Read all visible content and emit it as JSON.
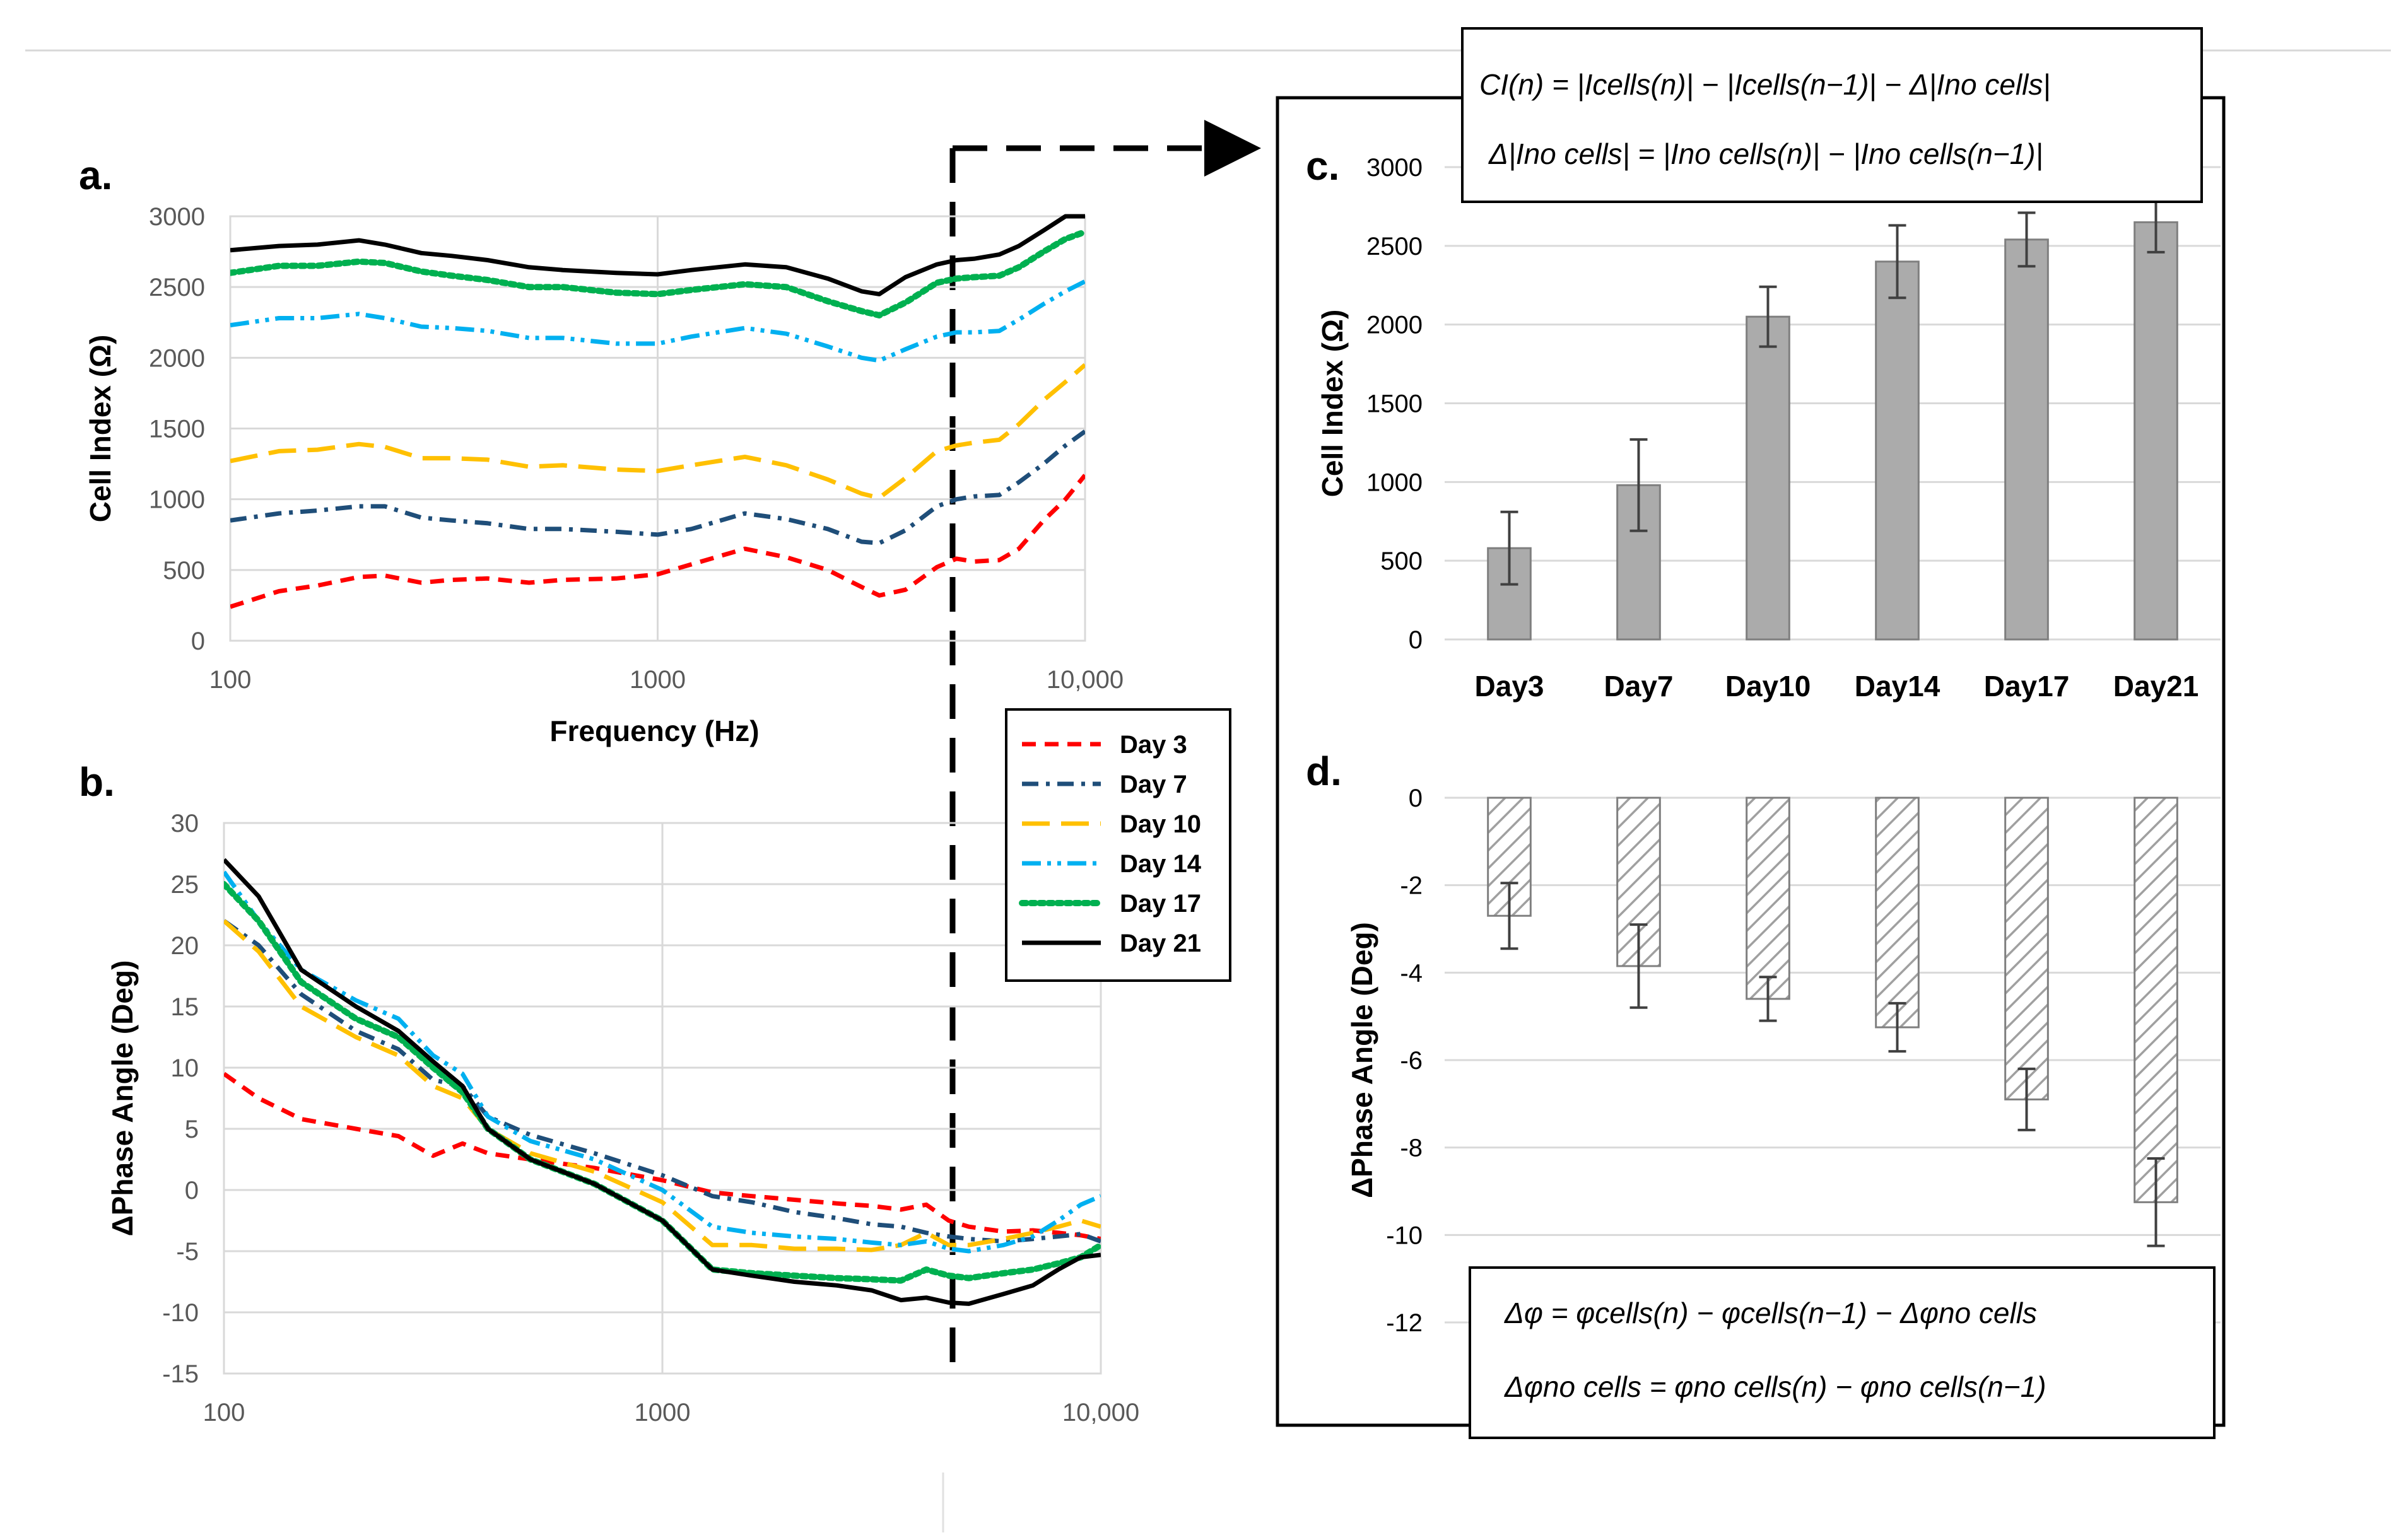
{
  "chart_data": [
    {
      "id": "a",
      "panel_label": "a.",
      "type": "line",
      "xscale": "log",
      "xlim": [
        100,
        10000
      ],
      "ylim": [
        0,
        3000
      ],
      "xlabel": "Frequency (Hz)",
      "ylabel": "Cell Index (Ω)",
      "xticks": [
        {
          "v": 100,
          "label": "100"
        },
        {
          "v": 1000,
          "label": "1000"
        },
        {
          "v": 10000,
          "label": "10,000"
        }
      ],
      "yticks": [
        0,
        500,
        1000,
        1500,
        2000,
        2500,
        3000
      ],
      "series": [
        {
          "name": "Day 3",
          "color": "#ff0000",
          "dash": "dash",
          "x": [
            100,
            130,
            160,
            200,
            230,
            280,
            330,
            400,
            500,
            600,
            800,
            1000,
            1200,
            1600,
            2000,
            2500,
            3000,
            3300,
            3800,
            4500,
            5000,
            5500,
            6300,
            7000,
            8000,
            9000,
            10000
          ],
          "y": [
            240,
            350,
            390,
            450,
            460,
            410,
            430,
            440,
            410,
            430,
            440,
            470,
            540,
            650,
            590,
            500,
            380,
            320,
            360,
            520,
            580,
            560,
            570,
            650,
            850,
            1000,
            1170
          ]
        },
        {
          "name": "Day 7",
          "color": "#1f4e79",
          "dash": "dashdot",
          "x": [
            100,
            130,
            160,
            200,
            230,
            280,
            330,
            400,
            500,
            600,
            800,
            1000,
            1200,
            1600,
            2000,
            2500,
            3000,
            3300,
            3800,
            4500,
            5000,
            5500,
            6300,
            7000,
            8000,
            9000,
            10000
          ],
          "y": [
            850,
            900,
            920,
            950,
            950,
            870,
            850,
            830,
            790,
            790,
            770,
            750,
            790,
            900,
            860,
            790,
            700,
            690,
            780,
            950,
            1000,
            1020,
            1030,
            1120,
            1250,
            1380,
            1480
          ]
        },
        {
          "name": "Day 10",
          "color": "#ffc000",
          "dash": "longdash",
          "x": [
            100,
            130,
            160,
            200,
            230,
            280,
            330,
            400,
            500,
            600,
            800,
            1000,
            1200,
            1600,
            2000,
            2500,
            3000,
            3300,
            3800,
            4500,
            5000,
            5500,
            6300,
            7000,
            8000,
            9000,
            10000
          ],
          "y": [
            1270,
            1340,
            1350,
            1390,
            1370,
            1290,
            1290,
            1280,
            1230,
            1240,
            1210,
            1200,
            1240,
            1300,
            1240,
            1140,
            1040,
            1010,
            1150,
            1340,
            1380,
            1400,
            1420,
            1530,
            1700,
            1830,
            1950
          ]
        },
        {
          "name": "Day 14",
          "color": "#00b0f0",
          "dash": "dashdotdot",
          "x": [
            100,
            130,
            160,
            200,
            230,
            280,
            330,
            400,
            500,
            600,
            800,
            1000,
            1200,
            1600,
            2000,
            2500,
            3000,
            3300,
            3800,
            4500,
            5000,
            5500,
            6300,
            7000,
            8000,
            9000,
            10000
          ],
          "y": [
            2230,
            2280,
            2280,
            2310,
            2280,
            2220,
            2210,
            2190,
            2140,
            2140,
            2100,
            2100,
            2150,
            2210,
            2170,
            2080,
            2000,
            1980,
            2060,
            2150,
            2180,
            2180,
            2190,
            2270,
            2380,
            2470,
            2540
          ]
        },
        {
          "name": "Day 17",
          "color": "#00b050",
          "dash": "dot",
          "x": [
            100,
            130,
            160,
            200,
            230,
            280,
            330,
            400,
            500,
            600,
            800,
            1000,
            1200,
            1600,
            2000,
            2500,
            3000,
            3300,
            3800,
            4500,
            5000,
            5500,
            6300,
            7000,
            8000,
            9000,
            10000
          ],
          "y": [
            2600,
            2650,
            2650,
            2680,
            2670,
            2610,
            2580,
            2550,
            2500,
            2500,
            2460,
            2450,
            2480,
            2520,
            2500,
            2400,
            2330,
            2300,
            2390,
            2530,
            2560,
            2570,
            2580,
            2640,
            2750,
            2840,
            2890
          ]
        },
        {
          "name": "Day 21",
          "color": "#000000",
          "dash": "solid",
          "x": [
            100,
            130,
            160,
            200,
            230,
            280,
            330,
            400,
            500,
            600,
            800,
            1000,
            1200,
            1600,
            2000,
            2500,
            3000,
            3300,
            3800,
            4500,
            5000,
            5500,
            6300,
            7000,
            8000,
            9000,
            10000
          ],
          "y": [
            2760,
            2790,
            2800,
            2830,
            2800,
            2740,
            2720,
            2690,
            2640,
            2620,
            2600,
            2590,
            2620,
            2660,
            2640,
            2560,
            2470,
            2450,
            2570,
            2660,
            2690,
            2700,
            2730,
            2790,
            2900,
            3000,
            3000
          ]
        }
      ]
    },
    {
      "id": "b",
      "panel_label": "b.",
      "type": "line",
      "xscale": "log",
      "xlim": [
        100,
        10000
      ],
      "ylim": [
        -15,
        30
      ],
      "xlabel": "",
      "ylabel": "ΔPhase Angle (Deg)",
      "xticks": [
        {
          "v": 100,
          "label": "100"
        },
        {
          "v": 1000,
          "label": "1000"
        },
        {
          "v": 10000,
          "label": "10,000"
        }
      ],
      "yticks": [
        -15,
        -10,
        -5,
        0,
        5,
        10,
        15,
        20,
        25,
        30
      ],
      "series": [
        {
          "name": "Day 3",
          "color": "#ff0000",
          "dash": "dash",
          "x": [
            100,
            120,
            150,
            200,
            250,
            300,
            350,
            400,
            500,
            700,
            1000,
            1300,
            1600,
            2000,
            2500,
            3000,
            3500,
            4000,
            4500,
            5000,
            6000,
            7000,
            8000,
            9000,
            10000
          ],
          "y": [
            9.5,
            7.5,
            5.8,
            5.0,
            4.4,
            2.8,
            3.8,
            3.0,
            2.5,
            1.8,
            0.8,
            -0.2,
            -0.5,
            -0.8,
            -1.1,
            -1.3,
            -1.6,
            -1.2,
            -2.5,
            -3.0,
            -3.4,
            -3.3,
            -3.5,
            -3.7,
            -4.0
          ]
        },
        {
          "name": "Day 7",
          "color": "#1f4e79",
          "dash": "dashdot",
          "x": [
            100,
            120,
            150,
            200,
            250,
            300,
            350,
            400,
            500,
            700,
            1000,
            1300,
            1600,
            2000,
            2500,
            3000,
            3500,
            4000,
            4500,
            5000,
            6000,
            7000,
            8000,
            9000,
            10000
          ],
          "y": [
            22.0,
            20.0,
            16.0,
            13.0,
            11.5,
            9.0,
            8.5,
            6.0,
            4.5,
            3.0,
            1.2,
            -0.5,
            -1.0,
            -1.8,
            -2.3,
            -2.8,
            -3.0,
            -3.5,
            -3.8,
            -4.0,
            -4.2,
            -4.0,
            -3.8,
            -3.6,
            -4.2
          ]
        },
        {
          "name": "Day 10",
          "color": "#ffc000",
          "dash": "longdash",
          "x": [
            100,
            120,
            150,
            200,
            250,
            300,
            350,
            400,
            500,
            700,
            1000,
            1300,
            1600,
            2000,
            2500,
            3000,
            3500,
            4000,
            4500,
            5000,
            6000,
            7000,
            8000,
            9000,
            10000
          ],
          "y": [
            22.0,
            19.5,
            15.0,
            12.5,
            11.0,
            8.5,
            7.5,
            5.0,
            3.0,
            1.5,
            -1.0,
            -4.5,
            -4.5,
            -4.8,
            -4.8,
            -4.9,
            -4.5,
            -3.5,
            -4.5,
            -4.5,
            -4.0,
            -3.5,
            -3.0,
            -2.5,
            -3.0
          ]
        },
        {
          "name": "Day 14",
          "color": "#00b0f0",
          "dash": "dashdotdot",
          "x": [
            100,
            120,
            150,
            200,
            250,
            300,
            350,
            400,
            500,
            700,
            1000,
            1300,
            1600,
            2000,
            2500,
            3000,
            3500,
            4000,
            4500,
            5000,
            6000,
            7000,
            8000,
            9000,
            10000
          ],
          "y": [
            26.0,
            22.0,
            18.0,
            15.5,
            14.0,
            11.0,
            9.5,
            6.0,
            4.0,
            2.5,
            0.0,
            -3.0,
            -3.5,
            -3.8,
            -4.0,
            -4.3,
            -4.5,
            -4.2,
            -4.8,
            -5.0,
            -4.5,
            -3.8,
            -2.5,
            -1.2,
            -0.5
          ]
        },
        {
          "name": "Day 17",
          "color": "#00b050",
          "dash": "dot",
          "x": [
            100,
            120,
            150,
            200,
            250,
            300,
            350,
            400,
            500,
            700,
            1000,
            1300,
            1600,
            2000,
            2500,
            3000,
            3500,
            4000,
            4500,
            5000,
            6000,
            7000,
            8000,
            9000,
            10000
          ],
          "y": [
            25.0,
            22.0,
            17.0,
            14.0,
            12.5,
            10.0,
            8.0,
            5.0,
            2.5,
            0.5,
            -2.5,
            -6.5,
            -6.8,
            -7.0,
            -7.2,
            -7.3,
            -7.4,
            -6.5,
            -7.0,
            -7.2,
            -6.8,
            -6.5,
            -6.0,
            -5.5,
            -4.5
          ]
        },
        {
          "name": "Day 21",
          "color": "#000000",
          "dash": "solid",
          "x": [
            100,
            120,
            150,
            200,
            250,
            300,
            350,
            400,
            500,
            700,
            1000,
            1300,
            1600,
            2000,
            2500,
            3000,
            3500,
            4000,
            4500,
            5000,
            6000,
            7000,
            8000,
            9000,
            10000
          ],
          "y": [
            27.0,
            24.0,
            18.0,
            15.0,
            13.0,
            10.5,
            8.5,
            5.0,
            2.5,
            0.5,
            -2.5,
            -6.5,
            -7.0,
            -7.5,
            -7.8,
            -8.2,
            -9.0,
            -8.8,
            -9.2,
            -9.3,
            -8.5,
            -7.8,
            -6.5,
            -5.5,
            -5.3
          ]
        }
      ]
    },
    {
      "id": "c",
      "panel_label": "c.",
      "type": "bar",
      "categories": [
        "Day3",
        "Day7",
        "Day10",
        "Day14",
        "Day17",
        "Day21"
      ],
      "values": [
        580,
        980,
        2050,
        2400,
        2540,
        2650
      ],
      "errors": [
        230,
        290,
        190,
        230,
        170,
        190
      ],
      "ylim": [
        0,
        3000
      ],
      "yticks": [
        0,
        500,
        1000,
        1500,
        2000,
        2500,
        3000
      ],
      "ylabel": "Cell Index (Ω)",
      "bar_color": "#ababab"
    },
    {
      "id": "d",
      "panel_label": "d.",
      "type": "bar",
      "categories": [
        "Day3",
        "Day7",
        "Day10",
        "Day14",
        "Day17",
        "Day21"
      ],
      "values": [
        -2.7,
        -3.85,
        -4.6,
        -5.25,
        -6.9,
        -9.25
      ],
      "errors": [
        0.75,
        0.95,
        0.5,
        0.55,
        0.7,
        1.0
      ],
      "ylim": [
        -12,
        0
      ],
      "yticks": [
        0,
        -2,
        -4,
        -6,
        -8,
        -10,
        -12
      ],
      "ylabel": "ΔPhase Angle (Deg)",
      "bar_pattern": "diagonal-hatch"
    }
  ],
  "equations": {
    "ci_1": "CI(n) = |Icells(n)| − |Icells(n−1)| − Δ|Ino cells|",
    "ci_2": "Δ|Ino cells| = |Ino cells(n)| − |Ino cells(n−1)|",
    "phi_1": "Δφ = φcells(n) − φcells(n−1) − Δφno cells",
    "phi_2": "Δφno cells = φno cells(n) − φno cells(n−1)"
  }
}
